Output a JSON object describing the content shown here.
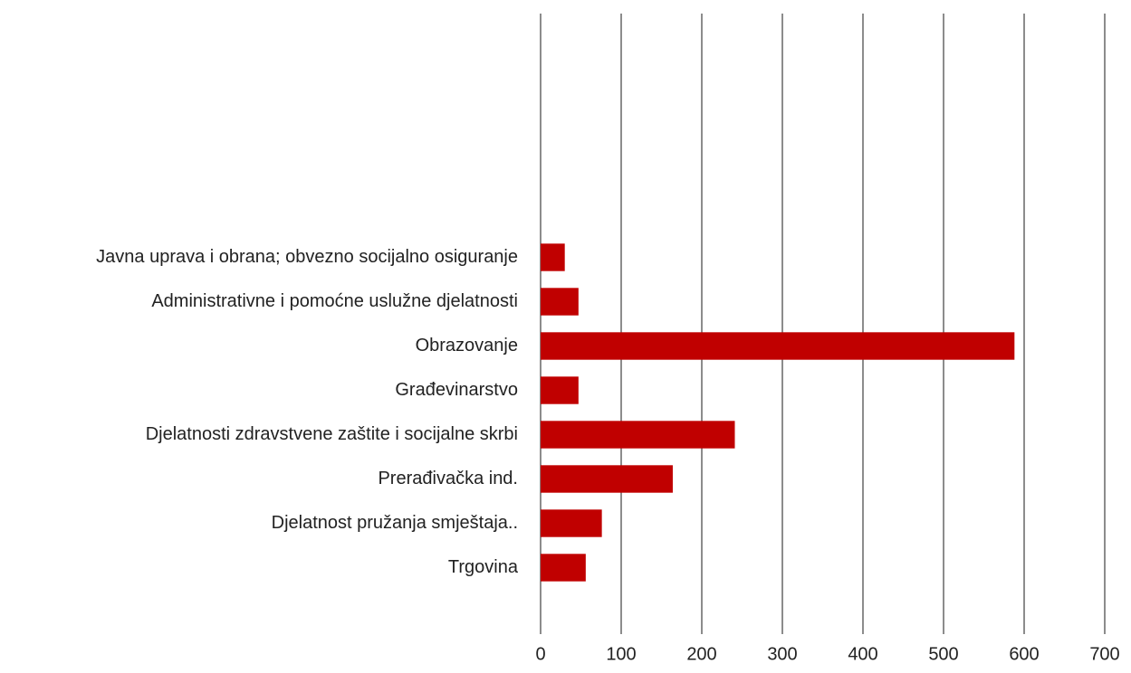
{
  "chart_data": {
    "type": "bar",
    "orientation": "horizontal",
    "categories": [
      null,
      null,
      null,
      null,
      null,
      "Javna uprava i obrana; obvezno socijalno osiguranje",
      "Administrativne i pomoćne uslužne djelatnosti",
      "Obrazovanje",
      "Građevinarstvo",
      "Djelatnosti zdravstvene zaštite i socijalne skrbi",
      "Prerađivačka ind.",
      "Djelatnost pružanja smještaja..",
      "Trgovina",
      null
    ],
    "values": [
      null,
      null,
      null,
      null,
      null,
      30,
      47,
      588,
      47,
      241,
      164,
      76,
      56,
      null
    ],
    "color": "#c00000",
    "xlim": [
      0,
      700
    ],
    "xticks": [
      0,
      100,
      200,
      300,
      400,
      500,
      600,
      700
    ],
    "grid": true
  }
}
